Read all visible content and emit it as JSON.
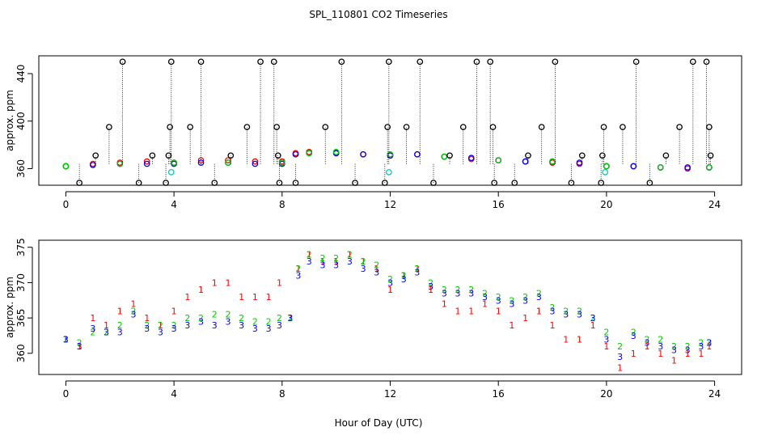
{
  "chart_data": [
    {
      "type": "scatter",
      "title": "SPL_110801  CO2 Timeseries",
      "ylabel": "approx. ppm",
      "xlabel": "",
      "xlim": [
        -1,
        25
      ],
      "ylim": [
        346,
        455
      ],
      "x_ticks": [
        0,
        4,
        8,
        12,
        16,
        20,
        24
      ],
      "x_tick_labels": [
        "0",
        "4",
        "8",
        "12",
        "16",
        "20",
        "24"
      ],
      "y_ticks": [
        360,
        400,
        440
      ],
      "y_tick_labels": [
        "360",
        "400",
        "440"
      ],
      "series": [
        {
          "name": "red",
          "color": "#ff0000",
          "marker": "circle",
          "x": [
            0,
            1,
            2,
            3,
            4,
            5,
            6,
            7,
            8,
            8.5,
            9,
            10,
            11,
            12,
            13,
            14,
            15,
            16,
            17,
            18,
            19,
            20,
            21,
            22,
            23,
            23.8
          ],
          "y": [
            362,
            364,
            365,
            366,
            365,
            367,
            367,
            366,
            366,
            373,
            374,
            373,
            372,
            371,
            372,
            370,
            368,
            367,
            366,
            365,
            364,
            362,
            362,
            361,
            360,
            361
          ]
        },
        {
          "name": "blue",
          "color": "#0000ff",
          "marker": "circle",
          "x": [
            0,
            1,
            2,
            3,
            4,
            5,
            6,
            7,
            8,
            8.5,
            9,
            10,
            11,
            12,
            13,
            14,
            15,
            16,
            17,
            18,
            19,
            20,
            21,
            22,
            23,
            23.8
          ],
          "y": [
            362,
            363,
            364,
            364,
            364,
            365,
            365,
            364,
            364,
            372,
            373,
            373,
            372,
            371,
            372,
            370,
            369,
            367,
            366,
            366,
            365,
            362,
            362,
            361,
            361,
            361
          ]
        },
        {
          "name": "green",
          "color": "#00cc00",
          "marker": "circle",
          "x": [
            0,
            2,
            4,
            6,
            8,
            9,
            10,
            12,
            14,
            16,
            18,
            20,
            22,
            23.8
          ],
          "y": [
            362,
            364,
            365,
            365,
            365,
            373,
            374,
            372,
            370,
            367,
            366,
            362,
            361,
            361
          ]
        },
        {
          "name": "cyan",
          "color": "#00cccc",
          "marker": "circle",
          "x": [
            3.9,
            11.95,
            19.95
          ],
          "y": [
            357,
            357,
            357
          ]
        },
        {
          "name": "black-spikes",
          "color": "#000000",
          "marker": "circle",
          "x": [
            0.5,
            1.1,
            1.6,
            2.1,
            2.7,
            3.2,
            3.7,
            3.8,
            3.85,
            3.9,
            4.6,
            5.0,
            5.5,
            6.1,
            6.7,
            7.2,
            7.7,
            7.8,
            7.85,
            7.9,
            8.5,
            9.6,
            10.2,
            10.7,
            11.8,
            11.9,
            11.95,
            12.6,
            13.1,
            13.6,
            14.2,
            14.7,
            15.2,
            15.7,
            15.8,
            15.85,
            16.6,
            17.1,
            17.6,
            18.1,
            18.7,
            19.1,
            19.8,
            19.85,
            19.9,
            20.6,
            21.1,
            21.6,
            22.2,
            22.7,
            23.2,
            23.7,
            23.8,
            23.85
          ],
          "y": [
            348,
            371,
            395,
            450,
            348,
            371,
            348,
            371,
            395,
            450,
            395,
            450,
            348,
            371,
            395,
            450,
            450,
            395,
            371,
            348,
            348,
            395,
            450,
            348,
            348,
            395,
            450,
            395,
            450,
            348,
            371,
            395,
            450,
            450,
            395,
            348,
            348,
            371,
            395,
            450,
            348,
            371,
            348,
            371,
            395,
            395,
            450,
            348,
            371,
            395,
            450,
            450,
            395,
            371
          ]
        }
      ]
    },
    {
      "type": "scatter",
      "title": "",
      "ylabel": "approx. ppm",
      "xlabel": "Hour of Day (UTC)",
      "xlim": [
        -1,
        25
      ],
      "ylim": [
        357,
        376
      ],
      "x_ticks": [
        0,
        4,
        8,
        12,
        16,
        20,
        24
      ],
      "x_tick_labels": [
        "0",
        "4",
        "8",
        "12",
        "16",
        "20",
        "24"
      ],
      "y_ticks": [
        360,
        365,
        370,
        375
      ],
      "y_tick_labels": [
        "360",
        "365",
        "370",
        "375"
      ],
      "series": [
        {
          "name": "red",
          "color": "#ff0000",
          "marker": "1",
          "x": [
            0,
            0.5,
            1,
            1.5,
            2,
            2.5,
            3,
            3.5,
            4,
            4.5,
            5,
            5.5,
            6,
            6.5,
            7,
            7.5,
            7.9,
            8.3,
            8.6,
            9,
            9.5,
            10,
            10.5,
            11,
            11.5,
            12,
            12.5,
            13,
            13.5,
            14,
            14.5,
            15,
            15.5,
            16,
            16.5,
            17,
            17.5,
            18,
            18.5,
            19,
            19.5,
            20,
            20.5,
            21,
            21.5,
            22,
            22.5,
            23,
            23.5,
            23.8
          ],
          "y": [
            362,
            361,
            365,
            364,
            366,
            367,
            365,
            364,
            366,
            368,
            369,
            370,
            370,
            368,
            368,
            368,
            370,
            365,
            372,
            374,
            373,
            373,
            374,
            373,
            372,
            369,
            371,
            372,
            369,
            367,
            366,
            366,
            367,
            366,
            364,
            365,
            366,
            364,
            362,
            362,
            364,
            361,
            358,
            360,
            361,
            360,
            359,
            360,
            360,
            361
          ]
        },
        {
          "name": "green",
          "color": "#00cc00",
          "marker": "2",
          "x": [
            0,
            0.5,
            1,
            1.5,
            2,
            2.5,
            3,
            3.5,
            4,
            4.5,
            5,
            5.5,
            6,
            6.5,
            7,
            7.5,
            7.9,
            8.3,
            8.6,
            9,
            9.5,
            10,
            10.5,
            11,
            11.5,
            12,
            12.5,
            13,
            13.5,
            14,
            14.5,
            15,
            15.5,
            16,
            16.5,
            17,
            17.5,
            18,
            18.5,
            19,
            19.5,
            20,
            20.5,
            21,
            21.5,
            22,
            22.5,
            23,
            23.5,
            23.8
          ],
          "y": [
            362,
            361.5,
            363,
            363,
            364,
            366,
            364,
            364,
            364,
            365,
            365,
            365.5,
            365.5,
            365,
            364.5,
            364.5,
            365,
            365,
            372,
            374,
            373.5,
            373.5,
            374,
            373,
            372.5,
            370.5,
            371,
            372,
            370,
            369,
            369,
            369,
            368.5,
            368,
            367.5,
            368,
            368.5,
            366.5,
            366,
            366,
            365,
            363,
            361,
            363,
            362,
            362,
            361,
            361,
            361.5,
            361.5
          ]
        },
        {
          "name": "blue",
          "color": "#0000ff",
          "marker": "3",
          "x": [
            0,
            0.5,
            1,
            1.5,
            2,
            2.5,
            3,
            3.5,
            4,
            4.5,
            5,
            5.5,
            6,
            6.5,
            7,
            7.5,
            7.9,
            8.3,
            8.6,
            9,
            9.5,
            10,
            10.5,
            11,
            11.5,
            12,
            12.5,
            13,
            13.5,
            14,
            14.5,
            15,
            15.5,
            16,
            16.5,
            17,
            17.5,
            18,
            18.5,
            19,
            19.5,
            20,
            20.5,
            21,
            21.5,
            22,
            22.5,
            23,
            23.5,
            23.8
          ],
          "y": [
            362,
            361,
            363.5,
            363,
            363,
            365.5,
            363.5,
            363,
            363.5,
            364,
            364.5,
            364,
            364.5,
            364,
            363.5,
            363.5,
            364,
            365,
            371,
            373,
            372.5,
            372.5,
            373,
            372,
            371.5,
            370,
            370.5,
            371.5,
            369.5,
            368.5,
            368.5,
            368.5,
            368,
            367.5,
            367,
            367.5,
            368,
            366,
            365.5,
            365.5,
            365,
            362,
            359.5,
            362.5,
            361.5,
            361,
            360.5,
            360.5,
            361,
            361.5
          ]
        }
      ]
    }
  ]
}
